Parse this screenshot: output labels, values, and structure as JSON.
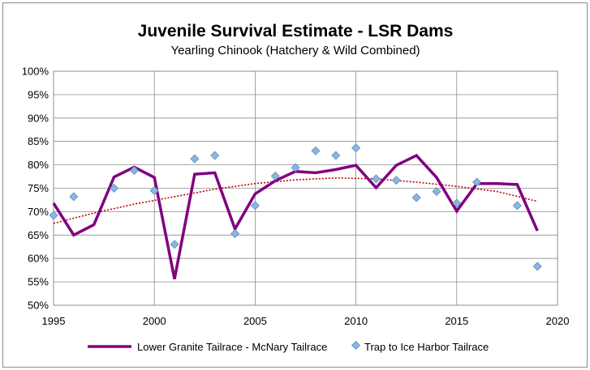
{
  "chart_data": {
    "type": "line",
    "title": "Juvenile Survival Estimate - LSR Dams",
    "subtitle": "Yearling Chinook (Hatchery & Wild Combined)",
    "xlim": [
      1995,
      2020
    ],
    "ylim": [
      0.5,
      1.0
    ],
    "x_ticks": [
      1995,
      2000,
      2005,
      2010,
      2015,
      2020
    ],
    "y_ticks": [
      "50%",
      "55%",
      "60%",
      "65%",
      "70%",
      "75%",
      "80%",
      "85%",
      "90%",
      "95%",
      "100%"
    ],
    "grid": true,
    "legend_position": "bottom",
    "series": [
      {
        "name": "Lower Granite Tailrace - McNary Tailrace",
        "style": "line",
        "color": "#800080",
        "x": [
          1995,
          1996,
          1997,
          1998,
          1999,
          2000,
          2001,
          2002,
          2003,
          2004,
          2005,
          2006,
          2007,
          2008,
          2009,
          2010,
          2011,
          2012,
          2013,
          2014,
          2015,
          2016,
          2017,
          2018,
          2019
        ],
        "y": [
          0.718,
          0.65,
          0.672,
          0.774,
          0.795,
          0.773,
          0.556,
          0.78,
          0.783,
          0.663,
          0.738,
          0.766,
          0.786,
          0.783,
          0.79,
          0.799,
          0.751,
          0.799,
          0.82,
          0.773,
          0.701,
          0.76,
          0.76,
          0.758,
          0.659
        ]
      },
      {
        "name": "Trap to Ice Harbor Tailrace",
        "style": "scatter",
        "color": "#8EB4E3",
        "x": [
          1995,
          1996,
          1998,
          1999,
          2000,
          2001,
          2002,
          2003,
          2004,
          2005,
          2006,
          2007,
          2008,
          2009,
          2010,
          2011,
          2012,
          2013,
          2014,
          2015,
          2016,
          2018,
          2019
        ],
        "y": [
          0.692,
          0.732,
          0.75,
          0.788,
          0.745,
          0.63,
          0.813,
          0.82,
          0.653,
          0.713,
          0.776,
          0.794,
          0.83,
          0.82,
          0.836,
          0.77,
          0.767,
          0.73,
          0.743,
          0.718,
          0.763,
          0.713,
          0.583
        ]
      }
    ],
    "trendline": {
      "color": "#C00000",
      "style": "dotted",
      "x": [
        1995,
        1997,
        1999,
        2001,
        2003,
        2005,
        2007,
        2009,
        2011,
        2013,
        2015,
        2017,
        2019
      ],
      "y": [
        0.675,
        0.697,
        0.716,
        0.732,
        0.748,
        0.76,
        0.768,
        0.772,
        0.77,
        0.763,
        0.754,
        0.743,
        0.722
      ]
    }
  }
}
